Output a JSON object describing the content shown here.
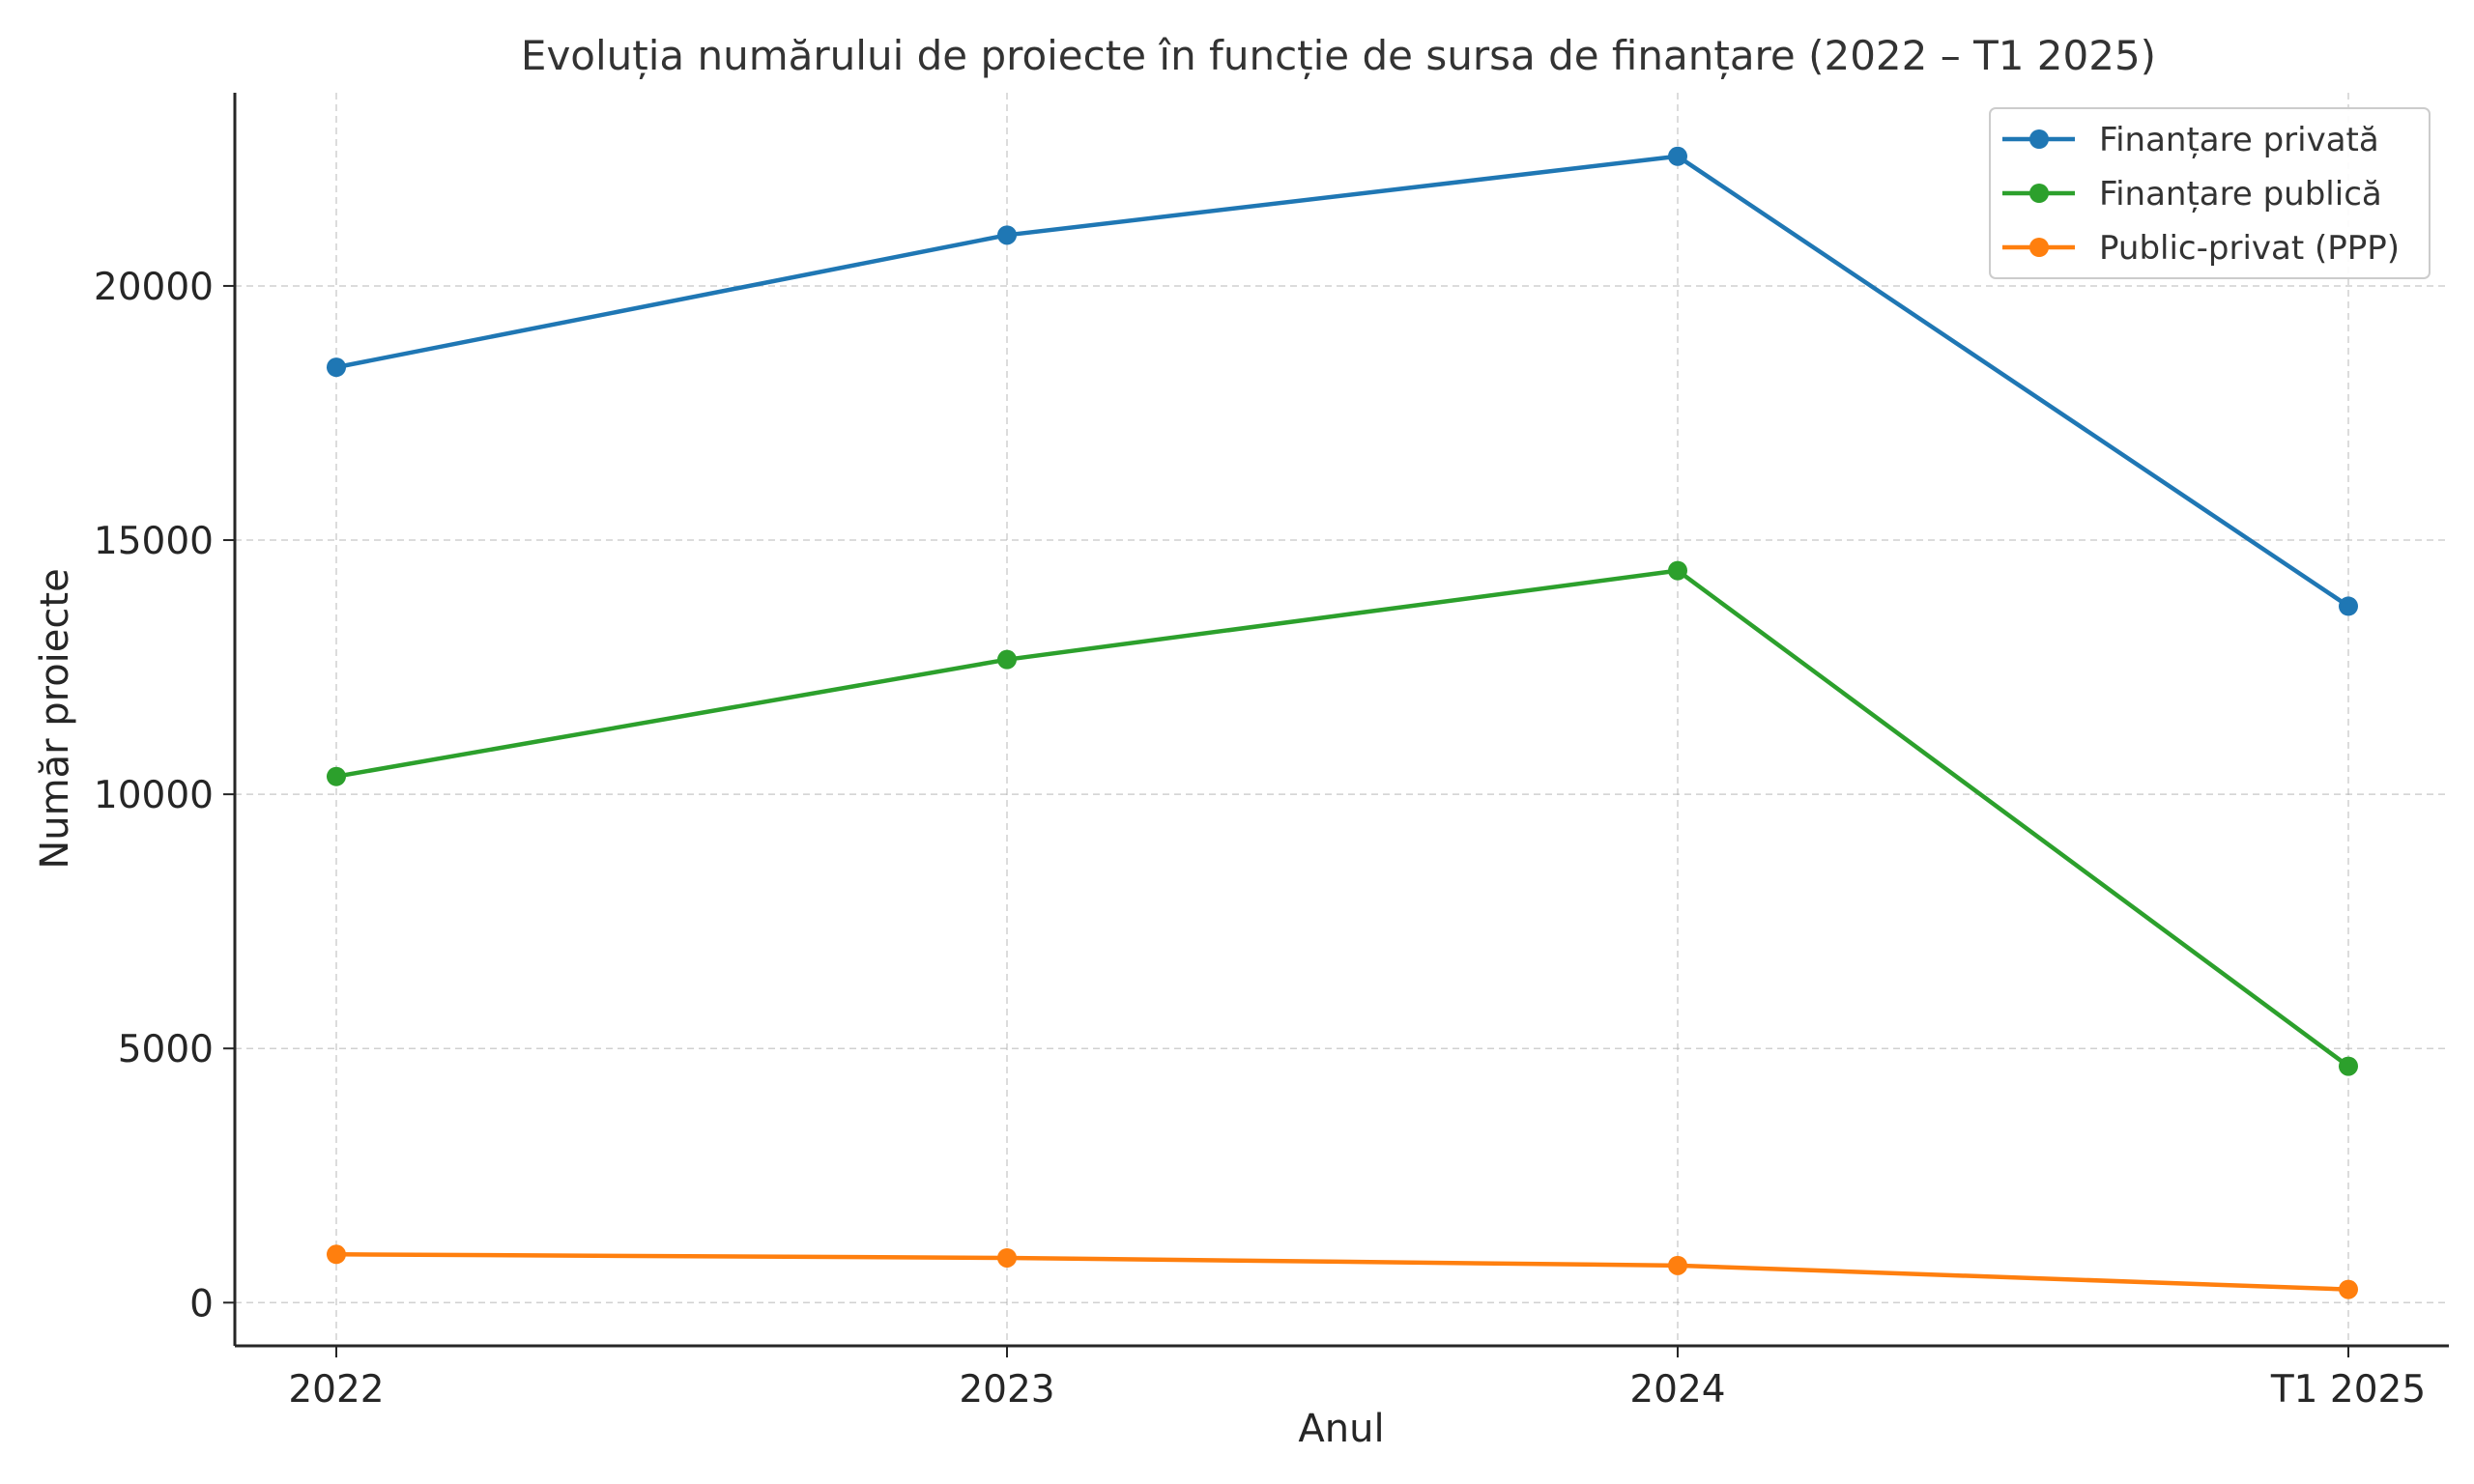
{
  "chart_data": {
    "type": "line",
    "title": "Evoluția numărului de proiecte în funcție de sursa de finanțare (2022 – T1 2025)",
    "xlabel": "Anul",
    "ylabel": "Număr proiecte",
    "categories": [
      "2022",
      "2023",
      "2024",
      "T1 2025"
    ],
    "ylim": [
      -850,
      23800
    ],
    "yticks": [
      0,
      5000,
      10000,
      15000,
      20000
    ],
    "grid": true,
    "legend_position": "top-right",
    "series": [
      {
        "name": "Finanțare privată",
        "color": "#1f77b4",
        "values": [
          18400,
          21000,
          22550,
          13700
        ]
      },
      {
        "name": "Finanțare publică",
        "color": "#2ca02c",
        "values": [
          10350,
          12650,
          14400,
          4650
        ]
      },
      {
        "name": "Public-privat (PPP)",
        "color": "#ff7f0e",
        "values": [
          950,
          880,
          730,
          260
        ]
      }
    ]
  }
}
